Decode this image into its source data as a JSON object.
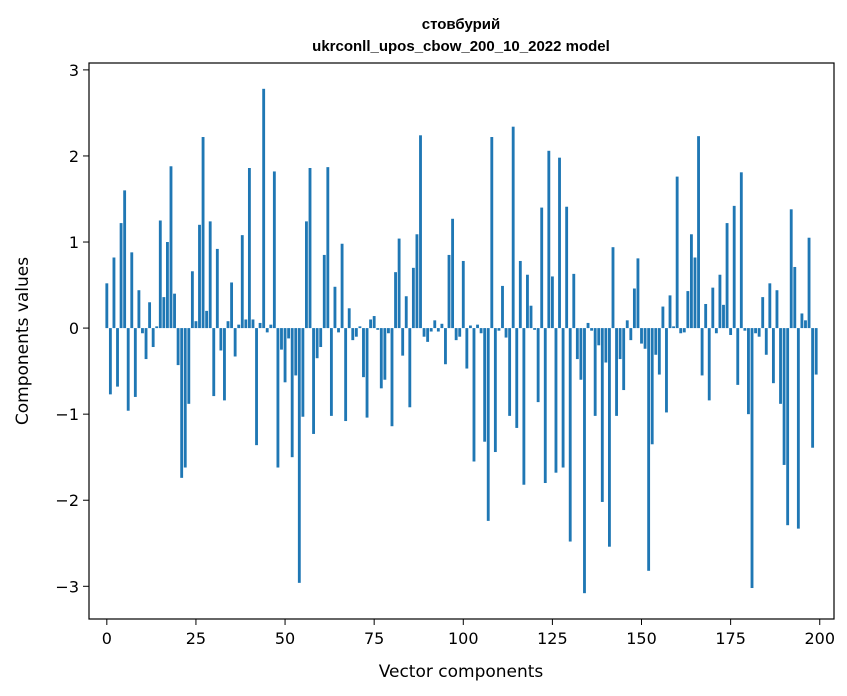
{
  "chart_data": {
    "type": "bar",
    "title": "стовбурий",
    "subtitle": "ukrconll_upos_cbow_200_10_2022 model",
    "xlabel": "Vector components",
    "ylabel": "Components values",
    "xlim": [
      -5,
      204
    ],
    "ylim": [
      -3.38,
      3.08
    ],
    "xticks": [
      0,
      25,
      50,
      75,
      100,
      125,
      150,
      175,
      200
    ],
    "yticks": [
      -3,
      -2,
      -1,
      0,
      1,
      2,
      3
    ],
    "grid": false,
    "legend": "none",
    "bar_color": "#1f77b4",
    "values": [
      0.52,
      -0.77,
      0.82,
      -0.68,
      1.22,
      1.6,
      -0.96,
      0.88,
      -0.8,
      0.44,
      -0.06,
      -0.36,
      0.3,
      -0.22,
      0.02,
      1.25,
      0.36,
      1.0,
      1.88,
      0.4,
      -0.43,
      -1.74,
      -1.62,
      -0.88,
      0.66,
      0.08,
      1.2,
      2.22,
      0.2,
      1.24,
      -0.79,
      0.92,
      -0.26,
      -0.84,
      0.08,
      0.53,
      -0.33,
      0.04,
      1.08,
      0.1,
      1.86,
      0.1,
      -1.36,
      0.06,
      2.78,
      -0.05,
      0.04,
      1.82,
      -1.62,
      -0.25,
      -0.63,
      -0.12,
      -1.5,
      -0.55,
      -2.96,
      -1.03,
      1.24,
      1.86,
      -1.23,
      -0.35,
      -0.22,
      0.85,
      1.87,
      -1.02,
      0.48,
      -0.05,
      0.98,
      -1.08,
      0.23,
      -0.14,
      -0.1,
      0.02,
      -0.57,
      -1.04,
      0.1,
      0.14,
      -0.02,
      -0.7,
      -0.6,
      -0.06,
      -1.14,
      0.65,
      1.04,
      -0.32,
      0.37,
      -0.92,
      0.7,
      1.09,
      2.24,
      -0.1,
      -0.16,
      -0.04,
      0.09,
      -0.04,
      0.05,
      -0.42,
      0.85,
      1.27,
      -0.14,
      -0.1,
      0.78,
      -0.47,
      0.03,
      -1.55,
      0.04,
      -0.06,
      -1.32,
      -2.24,
      2.22,
      -1.44,
      -0.03,
      0.49,
      -0.11,
      -1.02,
      2.34,
      -1.16,
      0.78,
      -1.82,
      0.62,
      0.26,
      -0.02,
      -0.86,
      1.4,
      -1.8,
      2.06,
      0.6,
      -1.68,
      1.98,
      -1.62,
      1.41,
      -2.48,
      0.63,
      -0.36,
      -0.6,
      -3.08,
      0.06,
      -0.03,
      -1.02,
      -0.2,
      -2.02,
      -0.4,
      -2.54,
      0.94,
      -1.02,
      -0.36,
      -0.72,
      0.09,
      -0.14,
      0.46,
      0.81,
      -0.18,
      -0.24,
      -2.82,
      -1.35,
      -0.31,
      -0.54,
      0.25,
      -0.98,
      0.38,
      0.02,
      1.76,
      -0.06,
      -0.05,
      0.43,
      1.09,
      0.82,
      2.23,
      -0.55,
      0.28,
      -0.84,
      0.47,
      -0.06,
      0.62,
      0.27,
      1.22,
      -0.08,
      1.42,
      -0.66,
      1.81,
      -0.03,
      -1.0,
      -3.02,
      -0.06,
      -0.1,
      0.36,
      -0.31,
      0.52,
      -0.64,
      0.44,
      -0.88,
      -1.59,
      -2.29,
      1.38,
      0.71,
      -2.33,
      0.17,
      0.09,
      1.05,
      -1.39,
      -0.54
    ]
  }
}
